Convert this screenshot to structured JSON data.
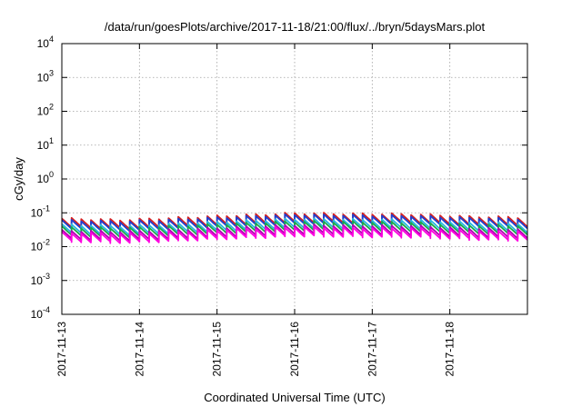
{
  "chart_data": {
    "type": "line",
    "title": "/data/run/goesPlots/archive/2017-11-18/21:00/flux/../bryn/5daysMars.plot",
    "xlabel": "Coordinated Universal Time (UTC)",
    "ylabel": "cGy/day",
    "yscale": "log",
    "ylim": [
      0.0001,
      10000
    ],
    "xlim": [
      "2017-11-13T00:00",
      "2017-11-19T00:00"
    ],
    "x_ticks": [
      "2017-11-13",
      "2017-11-14",
      "2017-11-15",
      "2017-11-16",
      "2017-11-17",
      "2017-11-18"
    ],
    "y_ticks": [
      {
        "base": "10",
        "exp": "-4",
        "value": 0.0001
      },
      {
        "base": "10",
        "exp": "-3",
        "value": 0.001
      },
      {
        "base": "10",
        "exp": "-2",
        "value": 0.01
      },
      {
        "base": "10",
        "exp": "-1",
        "value": 0.1
      },
      {
        "base": "10",
        "exp": "0",
        "value": 1
      },
      {
        "base": "10",
        "exp": "1",
        "value": 10
      },
      {
        "base": "10",
        "exp": "2",
        "value": 100
      },
      {
        "base": "10",
        "exp": "3",
        "value": 1000
      },
      {
        "base": "10",
        "exp": "4",
        "value": 10000
      }
    ],
    "grid": true,
    "legend": "none",
    "series_pattern": "sawtooth; sharp rise every 3 hours followed by exponential decay",
    "cycle_hours": 3,
    "decay_ratio": 0.55,
    "series": [
      {
        "color": "#d62020",
        "peaks": [
          0.068,
          0.062,
          0.072,
          0.085,
          0.098,
          0.094,
          0.092,
          0.078,
          0.074
        ]
      },
      {
        "color": "#1f3fd0",
        "peaks": [
          0.06,
          0.055,
          0.064,
          0.076,
          0.088,
          0.084,
          0.082,
          0.07,
          0.066
        ]
      },
      {
        "color": "#26b7e0",
        "peaks": [
          0.045,
          0.041,
          0.048,
          0.057,
          0.066,
          0.063,
          0.062,
          0.052,
          0.049
        ]
      },
      {
        "color": "#1aa84a",
        "peaks": [
          0.038,
          0.035,
          0.041,
          0.048,
          0.056,
          0.054,
          0.052,
          0.044,
          0.042
        ]
      },
      {
        "color": "#b000b0",
        "peaks": [
          0.03,
          0.028,
          0.032,
          0.038,
          0.044,
          0.042,
          0.041,
          0.035,
          0.033
        ]
      },
      {
        "color": "#ff00e0",
        "peaks": [
          0.026,
          0.024,
          0.028,
          0.033,
          0.038,
          0.036,
          0.035,
          0.03,
          0.028
        ]
      }
    ],
    "peaks_sampled_every_hours": 18
  }
}
